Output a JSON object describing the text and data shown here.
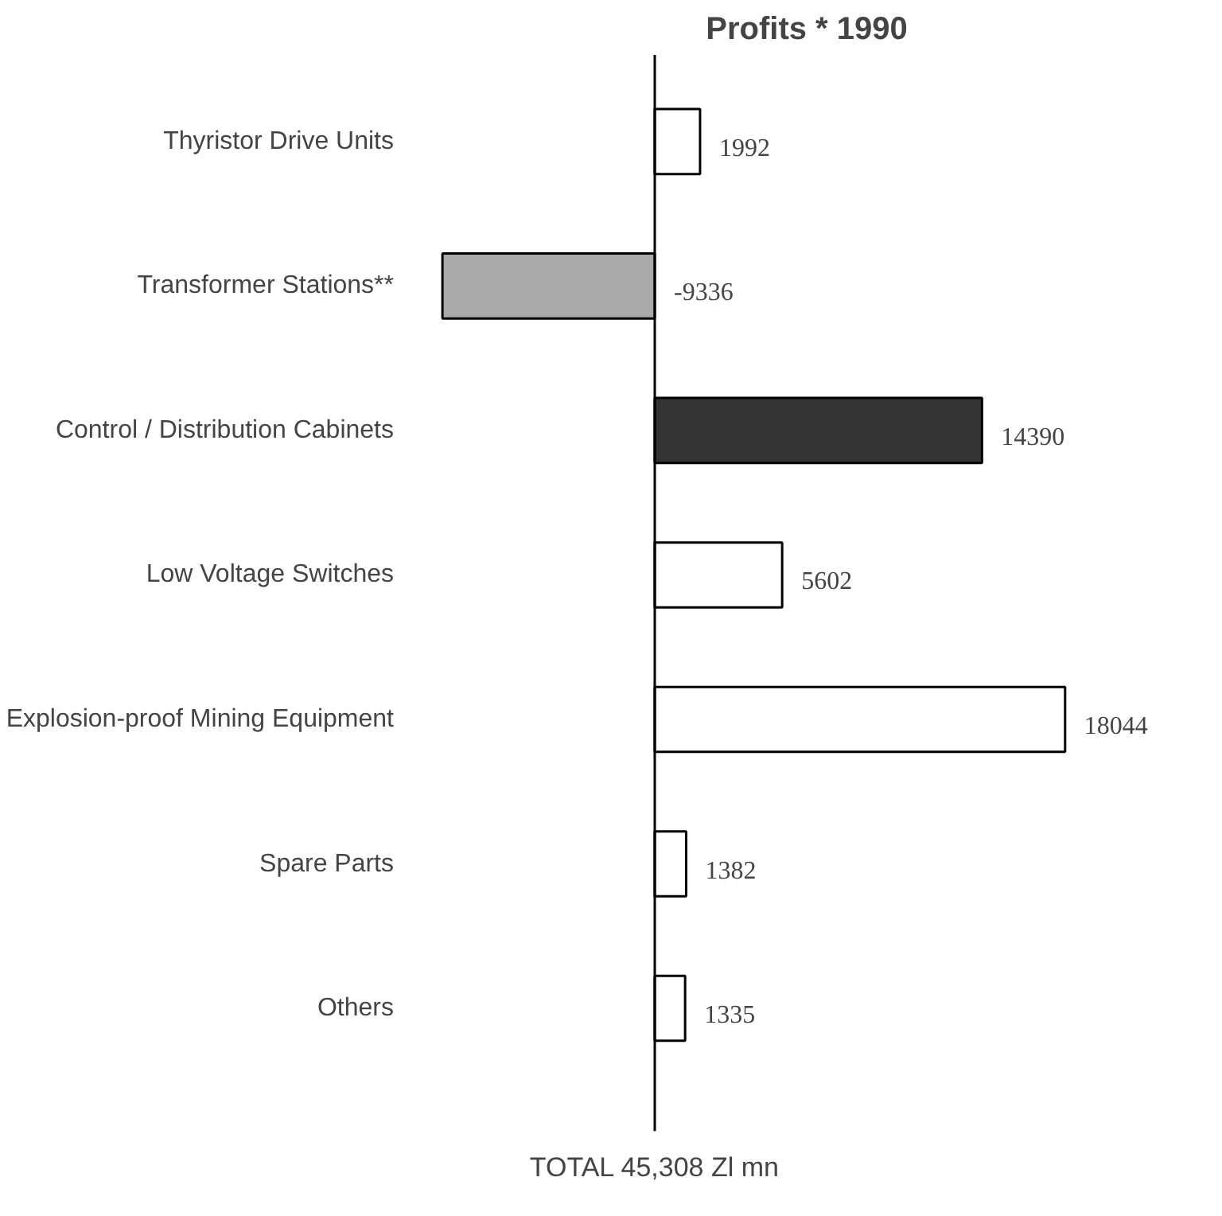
{
  "chart_data": {
    "type": "bar",
    "orientation": "horizontal",
    "title": "Profits * 1990",
    "categories": [
      "Thyristor Drive Units",
      "Transformer Stations**",
      "Control / Distribution Cabinets",
      "Low Voltage Switches",
      "Explosion-proof Mining Equipment",
      "Spare Parts",
      "Others"
    ],
    "values": [
      1992,
      -9336,
      14390,
      5602,
      18044,
      1382,
      1335
    ],
    "colors": [
      "#ffffff",
      "#aaaaaa",
      "#333333",
      "#ffffff",
      "#ffffff",
      "#ffffff",
      "#ffffff"
    ],
    "data_labels": true,
    "annotations": [
      "TOTAL 45,308 Zl mn"
    ]
  }
}
